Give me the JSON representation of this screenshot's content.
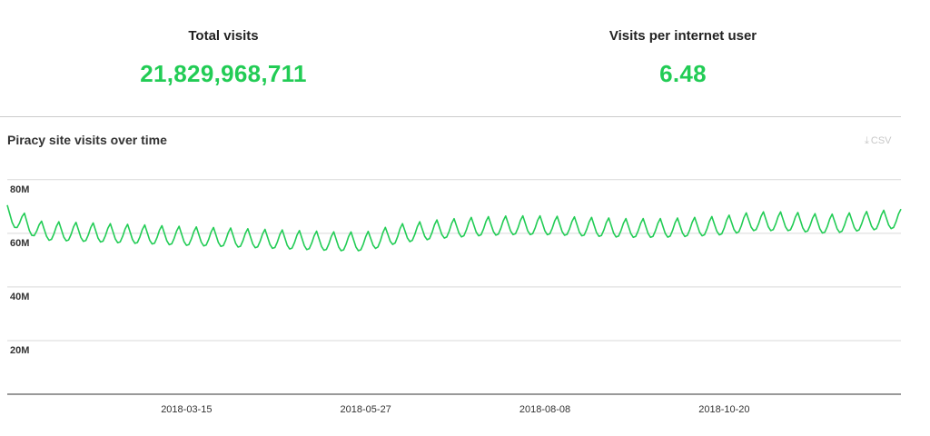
{
  "stats": {
    "total_visits": {
      "label": "Total visits",
      "value": "21,829,968,711"
    },
    "visits_per_user": {
      "label": "Visits per internet user",
      "value": "6.48"
    }
  },
  "chart": {
    "title": "Piracy site visits over time",
    "csv_label": "CSV",
    "csv_icon": "download-icon"
  },
  "colors": {
    "accent": "#22cc55",
    "grid": "#d9d9d9",
    "axis": "#333333"
  },
  "chart_data": {
    "type": "line",
    "title": "Piracy site visits over time",
    "xlabel": "",
    "ylabel": "",
    "x_range": [
      "2018-01-01",
      "2018-12-31"
    ],
    "ylim": [
      0,
      85000000
    ],
    "y_ticks": [
      {
        "value": 20000000,
        "label": "20M"
      },
      {
        "value": 40000000,
        "label": "40M"
      },
      {
        "value": 60000000,
        "label": "60M"
      },
      {
        "value": 80000000,
        "label": "80M"
      }
    ],
    "x_ticks": [
      "2018-03-15",
      "2018-05-27",
      "2018-08-08",
      "2018-10-20"
    ],
    "grid": true,
    "legend": "none",
    "series": [
      {
        "color": "#22cc55",
        "points": [
          [
            "2018-01-01",
            67000000
          ],
          [
            "2018-01-15",
            61000000
          ],
          [
            "2018-02-01",
            60500000
          ],
          [
            "2018-02-15",
            60000000
          ],
          [
            "2018-03-01",
            59500000
          ],
          [
            "2018-03-15",
            59000000
          ],
          [
            "2018-04-01",
            58500000
          ],
          [
            "2018-04-15",
            58000000
          ],
          [
            "2018-05-01",
            57500000
          ],
          [
            "2018-05-15",
            57000000
          ],
          [
            "2018-05-27",
            57000000
          ],
          [
            "2018-06-10",
            60000000
          ],
          [
            "2018-06-25",
            61500000
          ],
          [
            "2018-07-10",
            62500000
          ],
          [
            "2018-07-25",
            63000000
          ],
          [
            "2018-08-08",
            63000000
          ],
          [
            "2018-08-25",
            62500000
          ],
          [
            "2018-09-10",
            62000000
          ],
          [
            "2018-09-25",
            62000000
          ],
          [
            "2018-10-10",
            62500000
          ],
          [
            "2018-10-20",
            63000000
          ],
          [
            "2018-11-01",
            64500000
          ],
          [
            "2018-11-15",
            64500000
          ],
          [
            "2018-12-01",
            63500000
          ],
          [
            "2018-12-15",
            64500000
          ],
          [
            "2018-12-31",
            65500000
          ]
        ]
      }
    ]
  }
}
